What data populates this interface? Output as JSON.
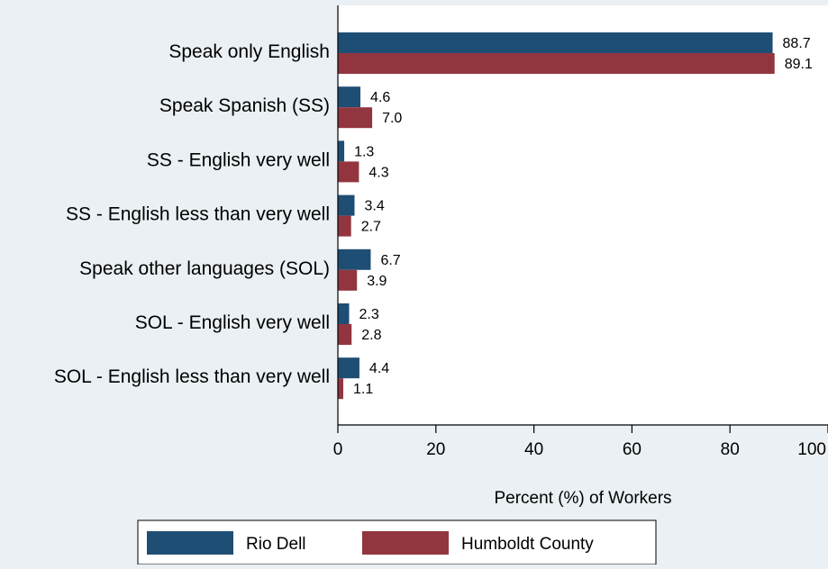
{
  "chart_data": {
    "type": "bar",
    "orientation": "horizontal",
    "categories": [
      "Speak only English",
      "Speak Spanish (SS)",
      "SS - English very well",
      "SS - English less than very well",
      "Speak other languages (SOL)",
      "SOL - English very well",
      "SOL - English less than very well"
    ],
    "series": [
      {
        "name": "Rio Dell",
        "color": "#1f4e74",
        "values": [
          88.7,
          4.6,
          1.3,
          3.4,
          6.7,
          2.3,
          4.4
        ],
        "labels": [
          "88.7",
          "4.6",
          "1.3",
          "3.4",
          "6.7",
          "2.3",
          "4.4"
        ]
      },
      {
        "name": "Humboldt County",
        "color": "#93353e",
        "values": [
          89.1,
          7.0,
          4.3,
          2.7,
          3.9,
          2.8,
          1.1
        ],
        "labels": [
          "89.1",
          "7.0",
          "4.3",
          "2.7",
          "3.9",
          "2.8",
          "1.1"
        ]
      }
    ],
    "xlabel": "Percent (%) of Workers",
    "ylabel": "",
    "xlim": [
      0,
      100
    ],
    "xticks": [
      "0",
      "20",
      "40",
      "60",
      "80",
      "100"
    ],
    "grid": false,
    "legend": "bottom"
  }
}
